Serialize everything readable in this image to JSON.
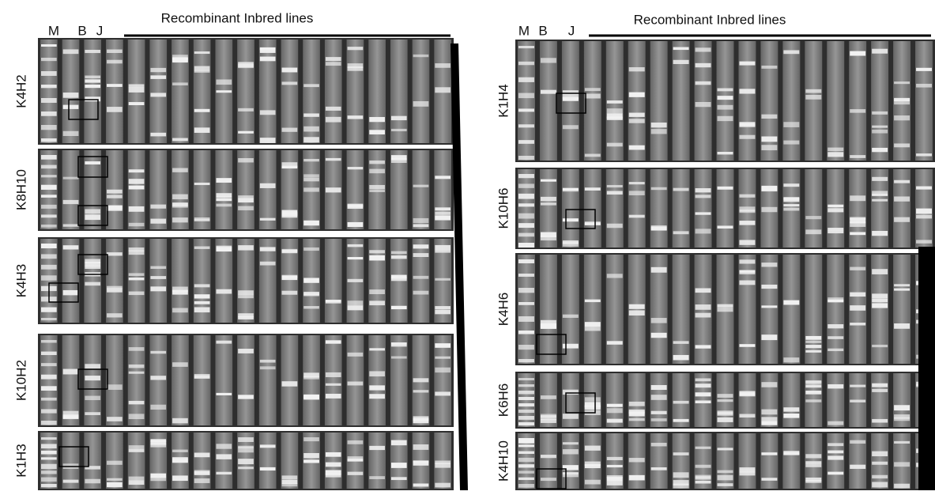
{
  "left_panel": {
    "lane_labels": [
      "M",
      "B",
      "J"
    ],
    "title": "Recombinant Inbred lines",
    "rows": [
      "K4H2",
      "K8H10",
      "K4H3",
      "K10H2",
      "K1H3"
    ]
  },
  "right_panel": {
    "lane_labels": [
      "M",
      "B",
      "J"
    ],
    "title": "Recombinant Inbred lines",
    "rows": [
      "K1H4",
      "K10H6",
      "K4H6",
      "K6H6",
      "K4H10"
    ]
  }
}
